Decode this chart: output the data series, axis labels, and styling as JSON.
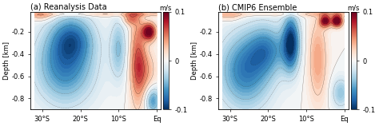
{
  "title_a": "(a) Reanalysis Data",
  "title_b": "(b) CMIP6 Ensemble",
  "ylabel": "Depth [km]",
  "xlabel_ticks": [
    "30°S",
    "20°S",
    "10°S",
    "Eq"
  ],
  "xlabel_vals": [
    -30,
    -20,
    -10,
    0
  ],
  "yticks": [
    -0.2,
    -0.4,
    -0.6,
    -0.8
  ],
  "ylim": [
    -0.9,
    -0.02
  ],
  "xlim": [
    -33,
    1
  ],
  "clim": [
    -0.1,
    0.1
  ],
  "cbar_label": "m/s",
  "cbar_ticks": [
    0.1,
    0,
    -0.1
  ],
  "figsize": [
    4.74,
    1.58
  ],
  "dpi": 100,
  "title_fontsize": 7.0,
  "tick_fontsize": 6.0,
  "cbar_fontsize": 6.0
}
